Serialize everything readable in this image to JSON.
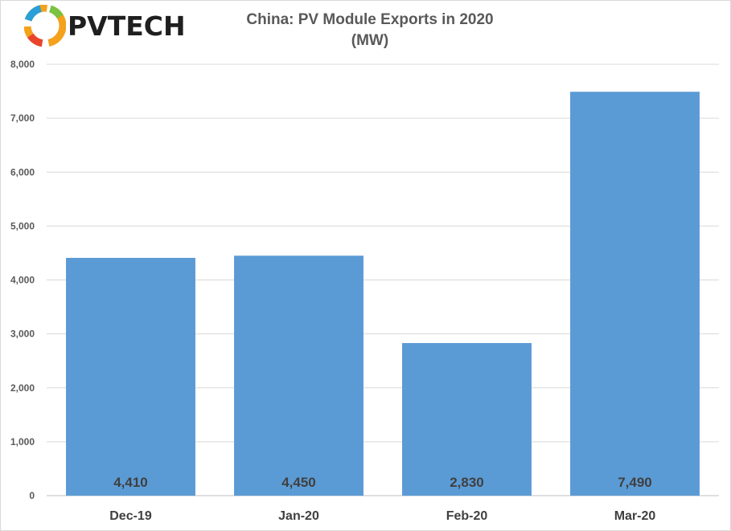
{
  "logo": {
    "text": "PVTECH"
  },
  "colors": {
    "bar": "#5b9bd5",
    "grid": "#d9d9d9",
    "axis_text": "#595959"
  },
  "chart_data": {
    "type": "bar",
    "title": "China: PV Module Exports in 2020",
    "subtitle": "(MW)",
    "categories": [
      "Dec-19",
      "Jan-20",
      "Feb-20",
      "Mar-20"
    ],
    "values": [
      4410,
      4450,
      2830,
      7490
    ],
    "data_labels": [
      "4,410",
      "4,450",
      "2,830",
      "7,490"
    ],
    "ylim": [
      0,
      8000
    ],
    "yticks": [
      0,
      1000,
      2000,
      3000,
      4000,
      5000,
      6000,
      7000,
      8000
    ],
    "ytick_labels": [
      "0",
      "1,000",
      "2,000",
      "3,000",
      "4,000",
      "5,000",
      "6,000",
      "7,000",
      "8,000"
    ],
    "grid": true,
    "xlabel": "",
    "ylabel": ""
  }
}
